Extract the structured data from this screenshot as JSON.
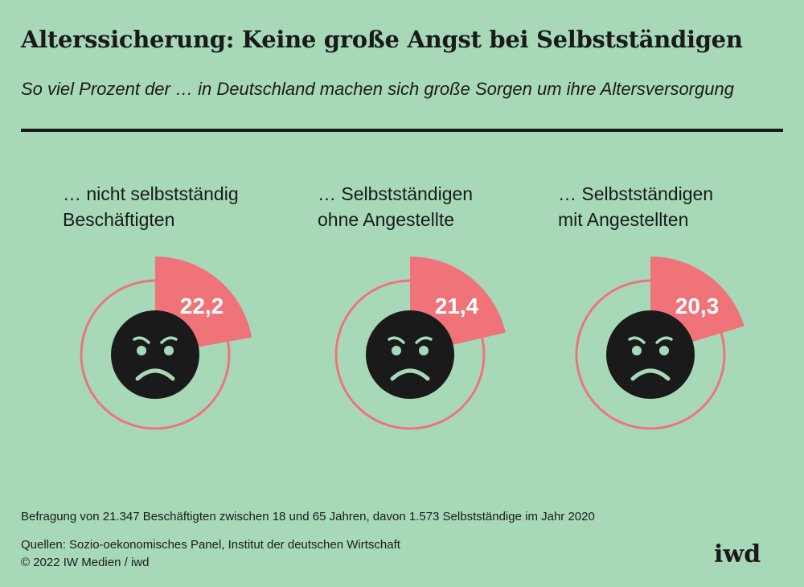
{
  "title": "Alterssicherung: Keine große Angst bei Selbstständigen",
  "subtitle": "So viel Prozent der … in Deutschland machen sich große Sorgen um ihre Altersversorgung",
  "chart_data": {
    "type": "pie",
    "unit": "Prozent",
    "max": 100,
    "items": [
      {
        "label_line1": "… nicht selbstständig",
        "label_line2": "Beschäftigten",
        "value": 22.2,
        "value_label": "22,2"
      },
      {
        "label_line1": "… Selbstständigen",
        "label_line2": "ohne Angestellte",
        "value": 21.4,
        "value_label": "21,4"
      },
      {
        "label_line1": "… Selbstständigen",
        "label_line2": "mit Angestellten",
        "value": 20.3,
        "value_label": "20,3"
      }
    ]
  },
  "colors": {
    "background": "#a7d9b9",
    "accent": "#f0737a",
    "dark": "#1a1a1a"
  },
  "icon": "sad-face-icon",
  "footnote": "Befragung von 21.347 Beschäftigten zwischen 18 und 65 Jahren, davon 1.573 Selbstständige im Jahr 2020",
  "sources": "Quellen: Sozio-oekonomisches Panel, Institut der deutschen Wirtschaft",
  "copyright": "© 2022 IW Medien / iwd",
  "logo": "iwd"
}
